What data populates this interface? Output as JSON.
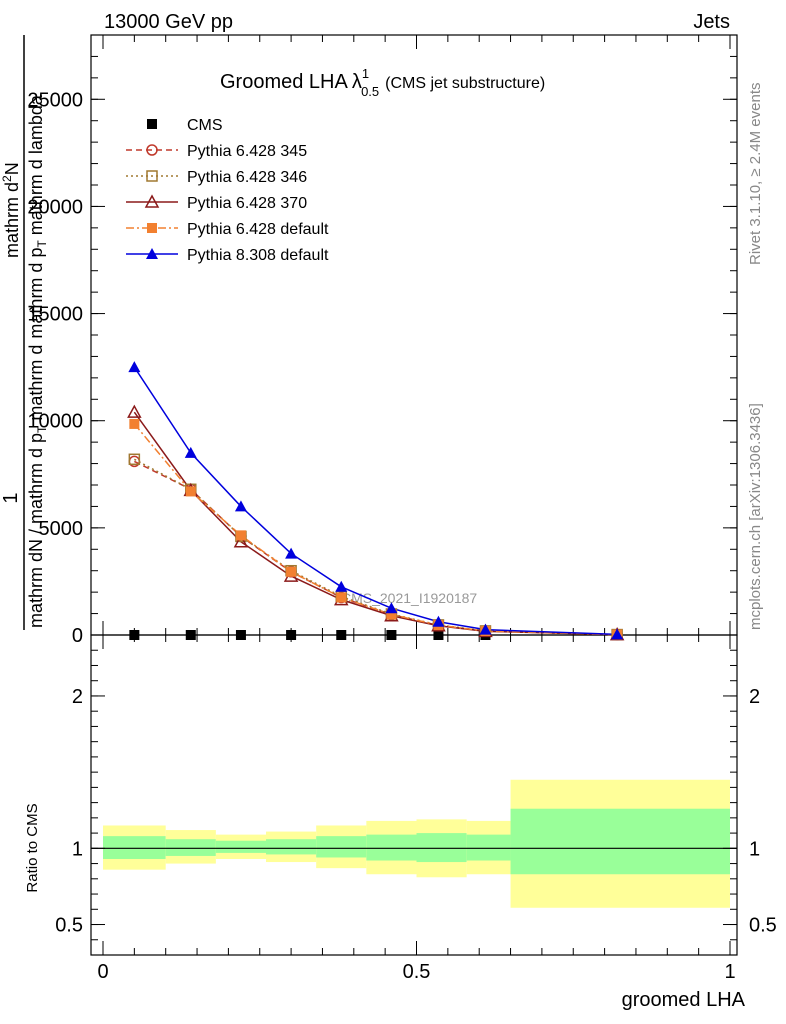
{
  "header": {
    "left": "13000 GeV pp",
    "right": "Jets"
  },
  "side_text": {
    "rivet": "Rivet 3.1.10, ≥ 2.4M events",
    "mcplots": "mcplots.cern.ch [arXiv:1306.3436]"
  },
  "chart_data": [
    {
      "type": "line",
      "title": "Groomed LHA",
      "title_symbol": "λ",
      "title_superscript": "1",
      "title_subscript": "0.5",
      "subtitle": "(CMS jet substructure)",
      "ylabel": "1 / mathrm dN / mathrm d p_T mathrm d^2N / mathrm d p_T mathrm d lambda",
      "ylabel_parts": {
        "numerator": "1",
        "denominator": "mathrm dN / mathrm d p",
        "denominator_sub": "T",
        "denominator_tail": " mathrm d",
        "numerator2": "mathrm d",
        "numerator2_sup": "2",
        "numerator2_tail": "N",
        "denominator2": "mathrm d p",
        "denominator2_sub": "T",
        "denominator2_tail": " mathrm d lambda"
      },
      "xlim": [
        0,
        1
      ],
      "ylim": [
        0,
        28000
      ],
      "y_ticks": [
        0,
        5000,
        10000,
        15000,
        20000,
        25000
      ],
      "y_tick_labels": [
        "0",
        "5000",
        "10000",
        "15000",
        "20000",
        "25000"
      ],
      "watermark": "CMS_2021_I1920187",
      "legend_position": "top-left",
      "x": [
        0.05,
        0.14,
        0.22,
        0.3,
        0.38,
        0.46,
        0.535,
        0.61,
        0.82
      ],
      "series": [
        {
          "name": "CMS",
          "color": "#000000",
          "marker": "filled-square",
          "line": "none",
          "values": [
            0,
            0,
            0,
            0,
            0,
            0,
            0,
            0,
            0
          ]
        },
        {
          "name": "Pythia 6.428 345",
          "color": "#c0392b",
          "marker": "open-circle",
          "line": "dashed",
          "values": [
            8100,
            6800,
            4600,
            2950,
            1750,
            950,
            450,
            180,
            20
          ]
        },
        {
          "name": "Pythia 6.428 346",
          "color": "#a07830",
          "marker": "open-square",
          "line": "dotted",
          "values": [
            8200,
            6800,
            4600,
            3000,
            1800,
            980,
            470,
            190,
            20
          ]
        },
        {
          "name": "Pythia 6.428 370",
          "color": "#8b1a1a",
          "marker": "open-triangle",
          "line": "solid",
          "values": [
            10400,
            6750,
            4350,
            2750,
            1650,
            900,
            430,
            170,
            20
          ]
        },
        {
          "name": "Pythia 6.428 default",
          "color": "#f28030",
          "marker": "filled-square",
          "line": "dashdot",
          "values": [
            9850,
            6700,
            4650,
            2950,
            1750,
            960,
            460,
            185,
            20
          ]
        },
        {
          "name": "Pythia 8.308 default",
          "color": "#0000dd",
          "marker": "filled-triangle",
          "line": "solid",
          "values": [
            12500,
            8500,
            6000,
            3800,
            2250,
            1250,
            620,
            250,
            30
          ]
        }
      ]
    },
    {
      "type": "area",
      "ylabel": "Ratio to CMS",
      "xlabel": "groomed LHA",
      "xlim": [
        0,
        1
      ],
      "ylim": [
        0.3,
        2.4
      ],
      "y_ticks": [
        0.5,
        1,
        2
      ],
      "y_tick_labels": [
        "0.5",
        "1",
        "2"
      ],
      "x_ticks": [
        0,
        0.5,
        1
      ],
      "x_tick_labels": [
        "0",
        "0.5",
        "1"
      ],
      "reference_line": 1,
      "bins": [
        {
          "lo": 0.0,
          "hi": 0.1,
          "inner": [
            0.93,
            1.08
          ],
          "outer": [
            0.86,
            1.15
          ]
        },
        {
          "lo": 0.1,
          "hi": 0.18,
          "inner": [
            0.95,
            1.06
          ],
          "outer": [
            0.9,
            1.12
          ]
        },
        {
          "lo": 0.18,
          "hi": 0.26,
          "inner": [
            0.97,
            1.05
          ],
          "outer": [
            0.93,
            1.09
          ]
        },
        {
          "lo": 0.26,
          "hi": 0.34,
          "inner": [
            0.96,
            1.06
          ],
          "outer": [
            0.91,
            1.11
          ]
        },
        {
          "lo": 0.34,
          "hi": 0.42,
          "inner": [
            0.94,
            1.08
          ],
          "outer": [
            0.87,
            1.15
          ]
        },
        {
          "lo": 0.42,
          "hi": 0.5,
          "inner": [
            0.92,
            1.09
          ],
          "outer": [
            0.83,
            1.18
          ]
        },
        {
          "lo": 0.5,
          "hi": 0.58,
          "inner": [
            0.91,
            1.1
          ],
          "outer": [
            0.81,
            1.19
          ]
        },
        {
          "lo": 0.58,
          "hi": 0.65,
          "inner": [
            0.92,
            1.09
          ],
          "outer": [
            0.83,
            1.18
          ]
        },
        {
          "lo": 0.65,
          "hi": 1.0,
          "inner": [
            0.83,
            1.26
          ],
          "outer": [
            0.61,
            1.45
          ]
        }
      ],
      "colors": {
        "inner": "#99ff99",
        "outer": "#ffff99"
      }
    }
  ]
}
